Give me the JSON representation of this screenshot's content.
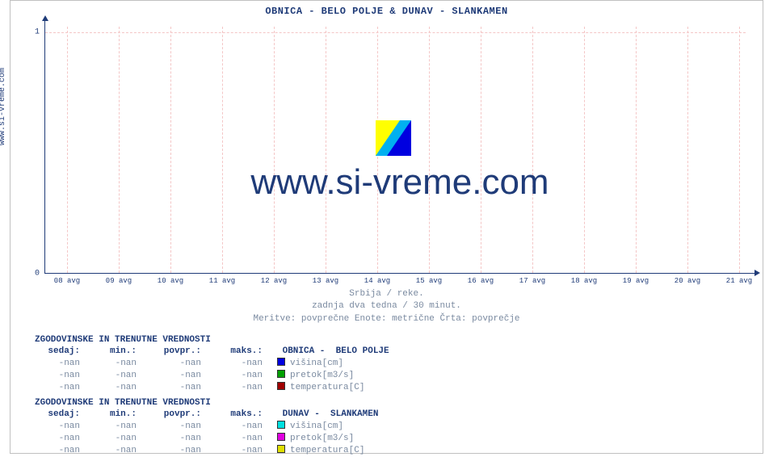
{
  "title": " OBNICA -  BELO POLJE &  DUNAV -  SLANKAMEN",
  "ylabel": "www.si-vreme.com",
  "watermark_text": "www.si-vreme.com",
  "subtitle": {
    "line1": "Srbija / reke.",
    "line2": "zadnja dva tedna / 30 minut.",
    "line3": "Meritve: povprečne  Enote: metrične  Črta: povprečje"
  },
  "chart": {
    "type": "line",
    "ylim": [
      0,
      1.05
    ],
    "yticks": [
      0,
      1
    ],
    "ytick_labels": [
      "0",
      "1"
    ],
    "xticks": [
      "08 avg",
      "09 avg",
      "10 avg",
      "11 avg",
      "12 avg",
      "13 avg",
      "14 avg",
      "15 avg",
      "16 avg",
      "17 avg",
      "18 avg",
      "19 avg",
      "20 avg",
      "21 avg"
    ],
    "grid_color": "#f4c6c6",
    "axis_color": "#1f3b78",
    "background_color": "#ffffff",
    "title_fontsize": 12,
    "tick_fontsize": 10
  },
  "logo_colors": {
    "tl": "#ffff00",
    "br": "#0000e0",
    "diag": "#00b0f0"
  },
  "tables": [
    {
      "title": "ZGODOVINSKE IN TRENUTNE VREDNOSTI",
      "series_name": " OBNICA -  BELO POLJE",
      "headers": [
        "sedaj:",
        "min.:",
        "povpr.:",
        "maks.:"
      ],
      "rows": [
        {
          "cells": [
            "-nan",
            "-nan",
            "-nan",
            "-nan"
          ],
          "swatch": "#0000e0",
          "label": "višina[cm]"
        },
        {
          "cells": [
            "-nan",
            "-nan",
            "-nan",
            "-nan"
          ],
          "swatch": "#00a000",
          "label": "pretok[m3/s]"
        },
        {
          "cells": [
            "-nan",
            "-nan",
            "-nan",
            "-nan"
          ],
          "swatch": "#a00000",
          "label": "temperatura[C]"
        }
      ]
    },
    {
      "title": "ZGODOVINSKE IN TRENUTNE VREDNOSTI",
      "series_name": " DUNAV -  SLANKAMEN",
      "headers": [
        "sedaj:",
        "min.:",
        "povpr.:",
        "maks.:"
      ],
      "rows": [
        {
          "cells": [
            "-nan",
            "-nan",
            "-nan",
            "-nan"
          ],
          "swatch": "#00e0e0",
          "label": "višina[cm]"
        },
        {
          "cells": [
            "-nan",
            "-nan",
            "-nan",
            "-nan"
          ],
          "swatch": "#e000e0",
          "label": "pretok[m3/s]"
        },
        {
          "cells": [
            "-nan",
            "-nan",
            "-nan",
            "-nan"
          ],
          "swatch": "#e0e000",
          "label": "temperatura[C]"
        }
      ]
    }
  ]
}
